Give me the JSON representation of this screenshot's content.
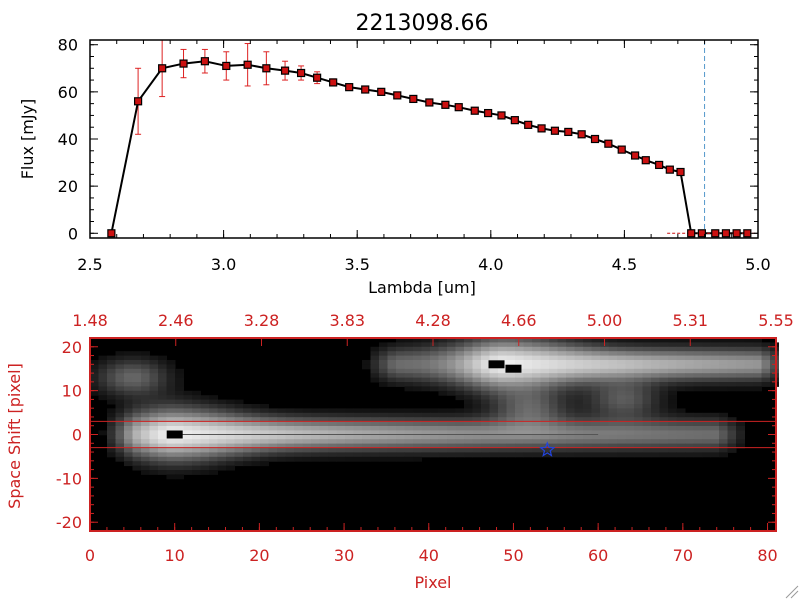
{
  "chart_data": [
    {
      "type": "line",
      "title": "2213098.66",
      "xlabel": "Lambda [um]",
      "ylabel": "Flux [mJy]",
      "xlim": [
        2.5,
        5.0
      ],
      "ylim": [
        -2,
        82
      ],
      "xticks": [
        "2.5",
        "3.0",
        "3.5",
        "4.0",
        "4.5",
        "5.0"
      ],
      "yticks": [
        "0",
        "20",
        "40",
        "60",
        "80"
      ],
      "grid": false,
      "vline_x": 4.8,
      "series": [
        {
          "x": [
            2.58,
            2.68,
            2.77,
            2.85,
            2.93,
            3.01,
            3.09,
            3.16,
            3.23,
            3.29,
            3.35,
            3.41,
            3.47,
            3.53,
            3.59,
            3.65,
            3.71,
            3.77,
            3.83,
            3.88,
            3.94,
            3.99,
            4.04,
            4.09,
            4.14,
            4.19,
            4.24,
            4.29,
            4.34,
            4.39,
            4.44,
            4.49,
            4.54,
            4.58,
            4.63,
            4.67,
            4.71,
            4.75,
            4.79,
            4.84,
            4.88,
            4.92,
            4.96
          ],
          "y": [
            0,
            56,
            70,
            72,
            73,
            71,
            71.5,
            70,
            69,
            68,
            66,
            64,
            62,
            61,
            60,
            58.5,
            57,
            55.5,
            54.5,
            53.5,
            52,
            51,
            50,
            48,
            46,
            44.5,
            43.5,
            43,
            42,
            40,
            38,
            35.5,
            33,
            31,
            29,
            27,
            26,
            0,
            0,
            0,
            0,
            0,
            0
          ],
          "yerr": [
            0,
            14,
            12,
            6,
            5,
            6,
            9,
            7,
            4,
            3,
            2.5,
            1.5,
            1,
            1,
            1,
            1,
            1,
            1,
            1,
            1,
            1,
            1,
            1,
            1,
            1,
            1,
            1,
            1,
            1,
            1,
            1,
            1,
            1,
            1,
            1,
            1,
            1,
            0,
            0,
            0,
            0,
            0,
            0
          ]
        }
      ]
    },
    {
      "type": "heatmap",
      "xlabel": "Pixel",
      "ylabel": "Space Shift [pixel]",
      "xlim": [
        0,
        81
      ],
      "ylim": [
        -22,
        22
      ],
      "xticks": [
        "0",
        "10",
        "20",
        "30",
        "40",
        "50",
        "60",
        "70",
        "80"
      ],
      "yticks": [
        "-20",
        "-10",
        "0",
        "10",
        "20"
      ],
      "top_ticks": [
        "1.48",
        "2.46",
        "3.28",
        "3.83",
        "4.28",
        "4.66",
        "5.00",
        "5.31",
        "5.55"
      ],
      "hlines_y": [
        3,
        -3
      ],
      "star": {
        "x": 54,
        "y": -3.5
      },
      "traces": [
        {
          "x_start": 3,
          "x_end": 76,
          "center_y": 0,
          "peak_x": 10,
          "brightness": 0.95,
          "width": 2.6
        },
        {
          "x_start": 34,
          "x_end": 81,
          "center_y": 16,
          "peak_x": 49,
          "brightness": 0.95,
          "width": 2.6
        }
      ],
      "blobs": [
        {
          "x": 5,
          "y": 13,
          "brightness": 0.4
        },
        {
          "x": 52,
          "y": 6,
          "brightness": 0.35
        },
        {
          "x": 63,
          "y": 8,
          "brightness": 0.35
        }
      ],
      "dark_marks": [
        {
          "x": 10,
          "y": 0
        },
        {
          "x": 48,
          "y": 16
        },
        {
          "x": 50,
          "y": 15
        }
      ]
    }
  ],
  "colors": {
    "axis_red": "#cc2222",
    "errorbar_red": "#dd2222",
    "marker_red": "#cc1111",
    "line_black": "#000000",
    "vline_blue": "#5599cc",
    "star_blue": "#2244dd"
  }
}
